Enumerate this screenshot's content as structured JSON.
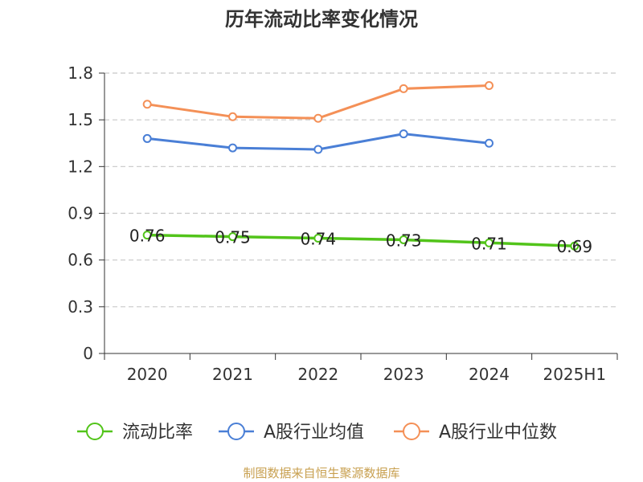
{
  "chart_data": {
    "type": "line",
    "title": "历年流动比率变化情况",
    "categories": [
      "2020",
      "2021",
      "2022",
      "2023",
      "2024",
      "2025H1"
    ],
    "ylim": [
      0,
      1.8
    ],
    "yticks": [
      0,
      0.3,
      0.6,
      0.9,
      1.2,
      1.5,
      1.8
    ],
    "ytick_labels": [
      "0",
      "0.3",
      "0.6",
      "0.9",
      "1.2",
      "1.5",
      "1.8"
    ],
    "grid": true,
    "legend_position": "bottom",
    "series": [
      {
        "name": "流动比率",
        "color": "#52c41a",
        "values": [
          0.76,
          0.75,
          0.74,
          0.73,
          0.71,
          0.69
        ],
        "labels": [
          "0.76",
          "0.75",
          "0.74",
          "0.73",
          "0.71",
          "0.69"
        ]
      },
      {
        "name": "A股行业均值",
        "color": "#4a7fd6",
        "values": [
          1.38,
          1.32,
          1.31,
          1.41,
          1.35,
          null
        ]
      },
      {
        "name": "A股行业中位数",
        "color": "#f49057",
        "values": [
          1.6,
          1.52,
          1.51,
          1.7,
          1.72,
          null
        ]
      }
    ]
  },
  "source_text": "制图数据来自恒生聚源数据库",
  "source_color": "#c8a050",
  "axis_color": "#333333",
  "grid_color": "#c8c8c8"
}
